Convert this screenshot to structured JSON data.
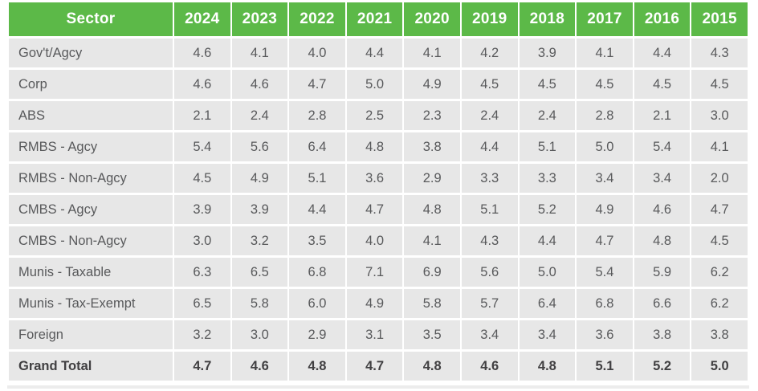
{
  "colors": {
    "header_bg": "#5cb948",
    "header_text": "#ffffff",
    "cell_bg": "#e7e7e7",
    "body_text": "#58595b",
    "total_text": "#414042",
    "gridline": "#ffffff"
  },
  "table": {
    "columns": [
      "Sector",
      "2024",
      "2023",
      "2022",
      "2021",
      "2020",
      "2019",
      "2018",
      "2017",
      "2016",
      "2015"
    ],
    "rows": [
      {
        "sector": "Gov't/Agcy",
        "is_total": false,
        "values": [
          "4.6",
          "4.1",
          "4.0",
          "4.4",
          "4.1",
          "4.2",
          "3.9",
          "4.1",
          "4.4",
          "4.3"
        ]
      },
      {
        "sector": "Corp",
        "is_total": false,
        "values": [
          "4.6",
          "4.6",
          "4.7",
          "5.0",
          "4.9",
          "4.5",
          "4.5",
          "4.5",
          "4.5",
          "4.5"
        ]
      },
      {
        "sector": "ABS",
        "is_total": false,
        "values": [
          "2.1",
          "2.4",
          "2.8",
          "2.5",
          "2.3",
          "2.4",
          "2.4",
          "2.8",
          "2.1",
          "3.0"
        ]
      },
      {
        "sector": "RMBS - Agcy",
        "is_total": false,
        "values": [
          "5.4",
          "5.6",
          "6.4",
          "4.8",
          "3.8",
          "4.4",
          "5.1",
          "5.0",
          "5.4",
          "4.1"
        ]
      },
      {
        "sector": "RMBS - Non-Agcy",
        "is_total": false,
        "values": [
          "4.5",
          "4.9",
          "5.1",
          "3.6",
          "2.9",
          "3.3",
          "3.3",
          "3.4",
          "3.4",
          "2.0"
        ]
      },
      {
        "sector": "CMBS - Agcy",
        "is_total": false,
        "values": [
          "3.9",
          "3.9",
          "4.4",
          "4.7",
          "4.8",
          "5.1",
          "5.2",
          "4.9",
          "4.6",
          "4.7"
        ]
      },
      {
        "sector": "CMBS - Non-Agcy",
        "is_total": false,
        "values": [
          "3.0",
          "3.2",
          "3.5",
          "4.0",
          "4.1",
          "4.3",
          "4.4",
          "4.7",
          "4.8",
          "4.5"
        ]
      },
      {
        "sector": "Munis - Taxable",
        "is_total": false,
        "values": [
          "6.3",
          "6.5",
          "6.8",
          "7.1",
          "6.9",
          "5.6",
          "5.0",
          "5.4",
          "5.9",
          "6.2"
        ]
      },
      {
        "sector": "Munis - Tax-Exempt",
        "is_total": false,
        "values": [
          "6.5",
          "5.8",
          "6.0",
          "4.9",
          "5.8",
          "5.7",
          "6.4",
          "6.8",
          "6.6",
          "6.2"
        ]
      },
      {
        "sector": "Foreign",
        "is_total": false,
        "values": [
          "3.2",
          "3.0",
          "2.9",
          "3.1",
          "3.5",
          "3.4",
          "3.4",
          "3.6",
          "3.8",
          "3.8"
        ]
      },
      {
        "sector": "Grand Total",
        "is_total": true,
        "values": [
          "4.7",
          "4.6",
          "4.8",
          "4.7",
          "4.8",
          "4.6",
          "4.8",
          "5.1",
          "5.2",
          "5.0"
        ]
      }
    ]
  },
  "chart_data": {
    "type": "table",
    "title": "",
    "categories": [
      "2024",
      "2023",
      "2022",
      "2021",
      "2020",
      "2019",
      "2018",
      "2017",
      "2016",
      "2015"
    ],
    "series": [
      {
        "name": "Gov't/Agcy",
        "values": [
          4.6,
          4.1,
          4.0,
          4.4,
          4.1,
          4.2,
          3.9,
          4.1,
          4.4,
          4.3
        ]
      },
      {
        "name": "Corp",
        "values": [
          4.6,
          4.6,
          4.7,
          5.0,
          4.9,
          4.5,
          4.5,
          4.5,
          4.5,
          4.5
        ]
      },
      {
        "name": "ABS",
        "values": [
          2.1,
          2.4,
          2.8,
          2.5,
          2.3,
          2.4,
          2.4,
          2.8,
          2.1,
          3.0
        ]
      },
      {
        "name": "RMBS - Agcy",
        "values": [
          5.4,
          5.6,
          6.4,
          4.8,
          3.8,
          4.4,
          5.1,
          5.0,
          5.4,
          4.1
        ]
      },
      {
        "name": "RMBS - Non-Agcy",
        "values": [
          4.5,
          4.9,
          5.1,
          3.6,
          2.9,
          3.3,
          3.3,
          3.4,
          3.4,
          2.0
        ]
      },
      {
        "name": "CMBS - Agcy",
        "values": [
          3.9,
          3.9,
          4.4,
          4.7,
          4.8,
          5.1,
          5.2,
          4.9,
          4.6,
          4.7
        ]
      },
      {
        "name": "CMBS - Non-Agcy",
        "values": [
          3.0,
          3.2,
          3.5,
          4.0,
          4.1,
          4.3,
          4.4,
          4.7,
          4.8,
          4.5
        ]
      },
      {
        "name": "Munis - Taxable",
        "values": [
          6.3,
          6.5,
          6.8,
          7.1,
          6.9,
          5.6,
          5.0,
          5.4,
          5.9,
          6.2
        ]
      },
      {
        "name": "Munis - Tax-Exempt",
        "values": [
          6.5,
          5.8,
          6.0,
          4.9,
          5.8,
          5.7,
          6.4,
          6.8,
          6.6,
          6.2
        ]
      },
      {
        "name": "Foreign",
        "values": [
          3.2,
          3.0,
          2.9,
          3.1,
          3.5,
          3.4,
          3.4,
          3.6,
          3.8,
          3.8
        ]
      },
      {
        "name": "Grand Total",
        "values": [
          4.7,
          4.6,
          4.8,
          4.7,
          4.8,
          4.6,
          4.8,
          5.1,
          5.2,
          5.0
        ]
      }
    ],
    "row_header_label": "Sector"
  }
}
